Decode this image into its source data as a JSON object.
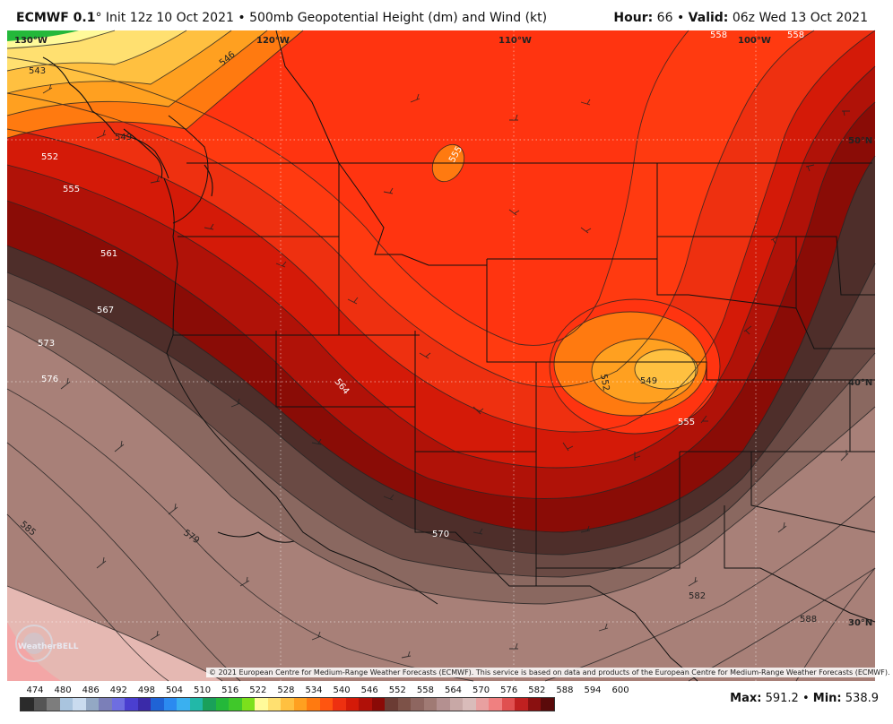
{
  "header": {
    "model": "ECMWF 0.1",
    "degree_symbol": "°",
    "init": "Init 12z 10 Oct 2021",
    "bullet": "•",
    "product": "500mb Geopotential Height (dm) and Wind (kt)",
    "hour_label": "Hour:",
    "hour_value": "66",
    "valid_label": "Valid:",
    "valid_value": "06z Wed 13 Oct 2021"
  },
  "map": {
    "longitude_labels": [
      "130°W",
      "120°W",
      "110°W",
      "100°W"
    ],
    "latitude_labels": [
      "50°N",
      "40°N",
      "30°N"
    ],
    "contour_labels": [
      "543",
      "546",
      "549",
      "552",
      "555",
      "558",
      "561",
      "564",
      "567",
      "570",
      "573",
      "576",
      "579",
      "582",
      "585",
      "588",
      "549",
      "552",
      "555",
      "555",
      "558"
    ],
    "credit": "© 2021 European Centre for Medium-Range Weather Forecasts (ECMWF). This service is based on data and products of the European Centre for Medium-Range Weather Forecasts (ECMWF).",
    "logo_text": "WeatherBELL"
  },
  "colorbar": {
    "ticks": [
      "474",
      "480",
      "486",
      "492",
      "498",
      "504",
      "510",
      "516",
      "522",
      "528",
      "534",
      "540",
      "546",
      "552",
      "558",
      "564",
      "570",
      "576",
      "582",
      "588",
      "594",
      "600"
    ],
    "colors": [
      "#2b2b2b",
      "#555555",
      "#7d7d7d",
      "#a9c4de",
      "#c9dbef",
      "#93a8c4",
      "#7b7fb8",
      "#6e6ee0",
      "#4a3fd0",
      "#3a2aa8",
      "#1f63d6",
      "#2b8af0",
      "#3ab0f0",
      "#22b8a8",
      "#1aa05a",
      "#24b83a",
      "#40c82a",
      "#7be01c",
      "#fffa9a",
      "#ffe070",
      "#ffc040",
      "#ffa020",
      "#ff7a10",
      "#ff5510",
      "#ee3010",
      "#d41a08",
      "#b01008",
      "#8a0a06",
      "#6b3c34",
      "#7d5248",
      "#8e6660",
      "#a07a74",
      "#b49090",
      "#c8a8a6",
      "#d9bcba",
      "#e8a0a0",
      "#f08080",
      "#e05050",
      "#c02020",
      "#8a1010",
      "#5a0a0a"
    ],
    "max_label": "Max:",
    "max_value": "591.2",
    "min_label": "Min:",
    "min_value": "538.9"
  }
}
